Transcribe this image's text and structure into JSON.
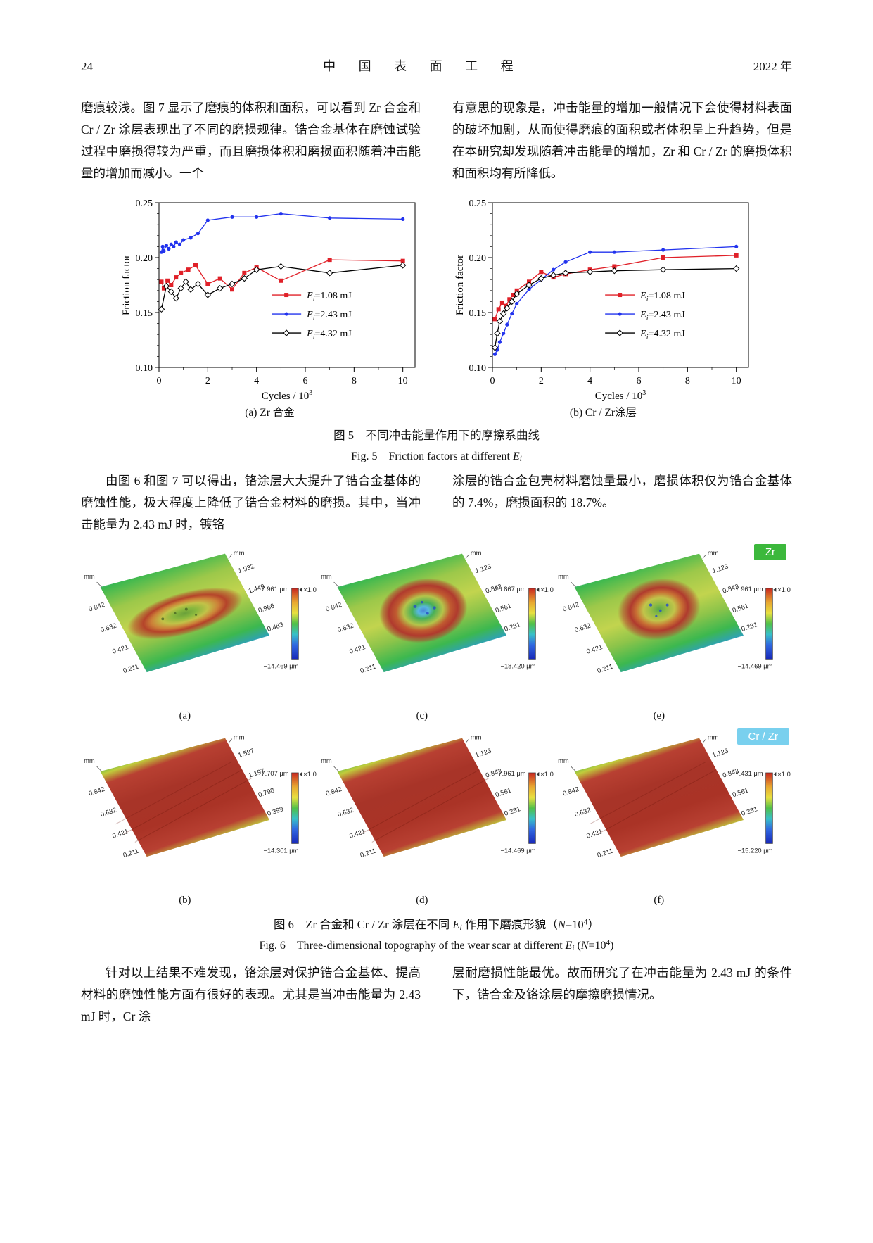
{
  "page": {
    "number": "24",
    "journal": "中 国 表 面 工 程",
    "year": "2022 年"
  },
  "text": {
    "p_top_left": "磨痕较浅。图 7 显示了磨痕的体积和面积，可以看到 Zr 合金和 Cr / Zr 涂层表现出了不同的磨损规律。锆合金基体在磨蚀试验过程中磨损得较为严重，而且磨损体积和磨损面积随着冲击能量的增加而减小。一个",
    "p_top_right": "有意思的现象是，冲击能量的增加一般情况下会使得材料表面的破坏加剧，从而使得磨痕的面积或者体积呈上升趋势，但是在本研究却发现随着冲击能量的增加，Zr 和 Cr / Zr 的磨损体积和面积均有所降低。",
    "p_mid_left": "由图 6 和图 7 可以得出，铬涂层大大提升了锆合金基体的磨蚀性能，极大程度上降低了锆合金材料的磨损。其中，当冲击能量为 2.43 mJ 时，镀铬",
    "p_mid_right": "涂层的锆合金包壳材料磨蚀量最小，磨损体积仅为锆合金基体的 7.4%，磨损面积的 18.7%。",
    "p_bottom_left": "针对以上结果不难发现，铬涂层对保护锆合金基体、提高材料的磨蚀性能方面有很好的表现。尤其是当冲击能量为 2.43 mJ 时，Cr 涂",
    "p_bottom_right": "层耐磨损性能最优。故而研究了在冲击能量为 2.43 mJ 的条件下，锆合金及铬涂层的摩擦磨损情况。"
  },
  "fig5": {
    "caption_cn": "图 5　不同冲击能量作用下的摩擦系曲线",
    "caption_en_segments": [
      {
        "t": "Fig. 5　Friction factors at different "
      },
      {
        "t": "E",
        "s": "it"
      },
      {
        "t": "i",
        "s": "sub"
      }
    ]
  },
  "chart_data": [
    {
      "type": "line",
      "title": "(a) Zr 合金",
      "ylabel": "Friction factor",
      "xlabel": "Cycles / 10³",
      "xlabel_segments": [
        {
          "t": "Cycles / 10"
        },
        {
          "t": "3",
          "s": "sup"
        }
      ],
      "xlim": [
        0,
        10.5
      ],
      "ylim": [
        0.1,
        0.25
      ],
      "xticks": [
        0,
        2,
        4,
        6,
        8,
        10
      ],
      "yticks": [
        0.1,
        0.15,
        0.2,
        0.25
      ],
      "grid": false,
      "legend_position": "center-right",
      "series": [
        {
          "name": "Ei=1.08 mJ",
          "color": "#e02028",
          "marker": "square",
          "label_segments": [
            {
              "t": "E",
              "s": "it"
            },
            {
              "t": "i",
              "s": "sub"
            },
            {
              "t": "=1.08 mJ"
            }
          ],
          "points": [
            [
              0.1,
              0.178
            ],
            [
              0.2,
              0.172
            ],
            [
              0.35,
              0.179
            ],
            [
              0.5,
              0.175
            ],
            [
              0.7,
              0.182
            ],
            [
              0.9,
              0.186
            ],
            [
              1.2,
              0.189
            ],
            [
              1.5,
              0.193
            ],
            [
              2,
              0.176
            ],
            [
              2.5,
              0.181
            ],
            [
              3,
              0.171
            ],
            [
              3.5,
              0.186
            ],
            [
              4,
              0.191
            ],
            [
              5,
              0.179
            ],
            [
              7,
              0.198
            ],
            [
              10,
              0.197
            ]
          ]
        },
        {
          "name": "Ei=2.43 mJ",
          "color": "#2233ee",
          "marker": "circle",
          "label_segments": [
            {
              "t": "E",
              "s": "it"
            },
            {
              "t": "i",
              "s": "sub"
            },
            {
              "t": "=2.43 mJ"
            }
          ],
          "points": [
            [
              0.1,
              0.205
            ],
            [
              0.15,
              0.21
            ],
            [
              0.2,
              0.206
            ],
            [
              0.3,
              0.211
            ],
            [
              0.4,
              0.208
            ],
            [
              0.5,
              0.212
            ],
            [
              0.6,
              0.21
            ],
            [
              0.7,
              0.214
            ],
            [
              0.85,
              0.212
            ],
            [
              1,
              0.216
            ],
            [
              1.3,
              0.218
            ],
            [
              1.6,
              0.222
            ],
            [
              2,
              0.234
            ],
            [
              3,
              0.237
            ],
            [
              4,
              0.237
            ],
            [
              5,
              0.24
            ],
            [
              7,
              0.236
            ],
            [
              10,
              0.235
            ]
          ]
        },
        {
          "name": "Ei=4.32 mJ",
          "color": "#000000",
          "marker": "diamond",
          "label_segments": [
            {
              "t": "E",
              "s": "it"
            },
            {
              "t": "i",
              "s": "sub"
            },
            {
              "t": "=4.32 mJ"
            }
          ],
          "points": [
            [
              0.1,
              0.153
            ],
            [
              0.3,
              0.174
            ],
            [
              0.5,
              0.169
            ],
            [
              0.7,
              0.163
            ],
            [
              0.9,
              0.172
            ],
            [
              1.1,
              0.178
            ],
            [
              1.3,
              0.171
            ],
            [
              1.6,
              0.176
            ],
            [
              2,
              0.166
            ],
            [
              2.5,
              0.172
            ],
            [
              3,
              0.176
            ],
            [
              3.5,
              0.181
            ],
            [
              4,
              0.189
            ],
            [
              5,
              0.192
            ],
            [
              7,
              0.186
            ],
            [
              10,
              0.193
            ]
          ]
        }
      ]
    },
    {
      "type": "line",
      "title": "(b) Cr / Zr涂层",
      "ylabel": "Friction factor",
      "xlabel": "Cycles / 10³",
      "xlabel_segments": [
        {
          "t": "Cycles / 10"
        },
        {
          "t": "3",
          "s": "sup"
        }
      ],
      "xlim": [
        0,
        10.5
      ],
      "ylim": [
        0.1,
        0.25
      ],
      "xticks": [
        0,
        2,
        4,
        6,
        8,
        10
      ],
      "yticks": [
        0.1,
        0.15,
        0.2,
        0.25
      ],
      "grid": false,
      "legend_position": "center-right",
      "series": [
        {
          "name": "Ei=1.08 mJ",
          "color": "#e02028",
          "marker": "square",
          "label_segments": [
            {
              "t": "E",
              "s": "it"
            },
            {
              "t": "i",
              "s": "sub"
            },
            {
              "t": "=1.08 mJ"
            }
          ],
          "points": [
            [
              0.1,
              0.144
            ],
            [
              0.25,
              0.153
            ],
            [
              0.4,
              0.159
            ],
            [
              0.55,
              0.156
            ],
            [
              0.7,
              0.162
            ],
            [
              0.85,
              0.166
            ],
            [
              1,
              0.17
            ],
            [
              1.5,
              0.178
            ],
            [
              2,
              0.187
            ],
            [
              2.5,
              0.182
            ],
            [
              3,
              0.185
            ],
            [
              4,
              0.189
            ],
            [
              5,
              0.192
            ],
            [
              7,
              0.2
            ],
            [
              10,
              0.202
            ]
          ]
        },
        {
          "name": "Ei=2.43 mJ",
          "color": "#2233ee",
          "marker": "circle",
          "label_segments": [
            {
              "t": "E",
              "s": "it"
            },
            {
              "t": "i",
              "s": "sub"
            },
            {
              "t": "=2.43 mJ"
            }
          ],
          "points": [
            [
              0.1,
              0.112
            ],
            [
              0.2,
              0.116
            ],
            [
              0.3,
              0.123
            ],
            [
              0.45,
              0.131
            ],
            [
              0.6,
              0.139
            ],
            [
              0.8,
              0.149
            ],
            [
              1,
              0.158
            ],
            [
              1.5,
              0.171
            ],
            [
              2,
              0.18
            ],
            [
              2.5,
              0.189
            ],
            [
              3,
              0.196
            ],
            [
              4,
              0.205
            ],
            [
              5,
              0.205
            ],
            [
              7,
              0.207
            ],
            [
              10,
              0.21
            ]
          ]
        },
        {
          "name": "Ei=4.32 mJ",
          "color": "#000000",
          "marker": "diamond",
          "label_segments": [
            {
              "t": "E",
              "s": "it"
            },
            {
              "t": "i",
              "s": "sub"
            },
            {
              "t": "=4.32 mJ"
            }
          ],
          "points": [
            [
              0.1,
              0.118
            ],
            [
              0.2,
              0.131
            ],
            [
              0.3,
              0.142
            ],
            [
              0.45,
              0.149
            ],
            [
              0.6,
              0.154
            ],
            [
              0.8,
              0.16
            ],
            [
              1,
              0.167
            ],
            [
              1.5,
              0.175
            ],
            [
              2,
              0.181
            ],
            [
              2.5,
              0.184
            ],
            [
              3,
              0.186
            ],
            [
              4,
              0.187
            ],
            [
              5,
              0.188
            ],
            [
              7,
              0.189
            ],
            [
              10,
              0.19
            ]
          ]
        }
      ]
    }
  ],
  "fig6": {
    "badge_zr": "Zr",
    "badge_zr_color": "#3cb83c",
    "badge_crzr": "Cr / Zr",
    "badge_crzr_color": "#79d0ee",
    "caption_cn_segments": [
      {
        "t": "图 6　Zr 合金和 Cr / Zr 涂层在不同 "
      },
      {
        "t": "E",
        "s": "it"
      },
      {
        "t": "i",
        "s": "sub"
      },
      {
        "t": " 作用下磨痕形貌（"
      },
      {
        "t": "N",
        "s": "it"
      },
      {
        "t": "=10"
      },
      {
        "t": "4",
        "s": "sup"
      },
      {
        "t": "）"
      }
    ],
    "caption_en_segments": [
      {
        "t": "Fig. 6　Three-dimensional topography of the wear scar at different "
      },
      {
        "t": "E",
        "s": "it"
      },
      {
        "t": "i",
        "s": "sub"
      },
      {
        "t": " ("
      },
      {
        "t": "N",
        "s": "it"
      },
      {
        "t": "=10"
      },
      {
        "t": "4",
        "s": "sup"
      },
      {
        "t": ")"
      }
    ],
    "panels": [
      {
        "label": "(a)",
        "axis_unit": "mm",
        "left_ticks": [
          "0.842",
          "0.632",
          "0.421",
          "0.211"
        ],
        "right_ticks": [
          "1.932",
          "1.449",
          "0.966",
          "0.483"
        ],
        "cb_top": "7.961 μm",
        "cb_scale": "×1.0",
        "cb_bottom": "−14.469 μm"
      },
      {
        "label": "(b)",
        "axis_unit": "mm",
        "left_ticks": [
          "0.842",
          "0.632",
          "0.421",
          "0.211"
        ],
        "right_ticks": [
          "1.597",
          "1.197",
          "0.798",
          "0.399"
        ],
        "cb_top": "7.707 μm",
        "cb_scale": "×1.0",
        "cb_bottom": "−14.301 μm"
      },
      {
        "label": "(c)",
        "axis_unit": "mm",
        "left_ticks": [
          "0.842",
          "0.632",
          "0.421",
          "0.211"
        ],
        "right_ticks": [
          "1.123",
          "0.842",
          "0.561",
          "0.281"
        ],
        "cb_top": "20.867 μm",
        "cb_scale": "×1.0",
        "cb_bottom": "−18.420 μm"
      },
      {
        "label": "(d)",
        "axis_unit": "mm",
        "left_ticks": [
          "0.842",
          "0.632",
          "0.421",
          "0.211"
        ],
        "right_ticks": [
          "1.123",
          "0.842",
          "0.561",
          "0.281"
        ],
        "cb_top": "7.961 μm",
        "cb_scale": "×1.0",
        "cb_bottom": "−14.469 μm"
      },
      {
        "label": "(e)",
        "axis_unit": "mm",
        "left_ticks": [
          "0.842",
          "0.632",
          "0.421",
          "0.211"
        ],
        "right_ticks": [
          "1.123",
          "0.842",
          "0.561",
          "0.281"
        ],
        "cb_top": "7.961 μm",
        "cb_scale": "×1.0",
        "cb_bottom": "−14.469 μm"
      },
      {
        "label": "(f)",
        "axis_unit": "mm",
        "left_ticks": [
          "0.842",
          "0.632",
          "0.421",
          "0.211"
        ],
        "right_ticks": [
          "1.123",
          "0.842",
          "0.561",
          "0.281"
        ],
        "cb_top": "7.431 μm",
        "cb_scale": "×1.0",
        "cb_bottom": "−15.220 μm"
      }
    ]
  }
}
